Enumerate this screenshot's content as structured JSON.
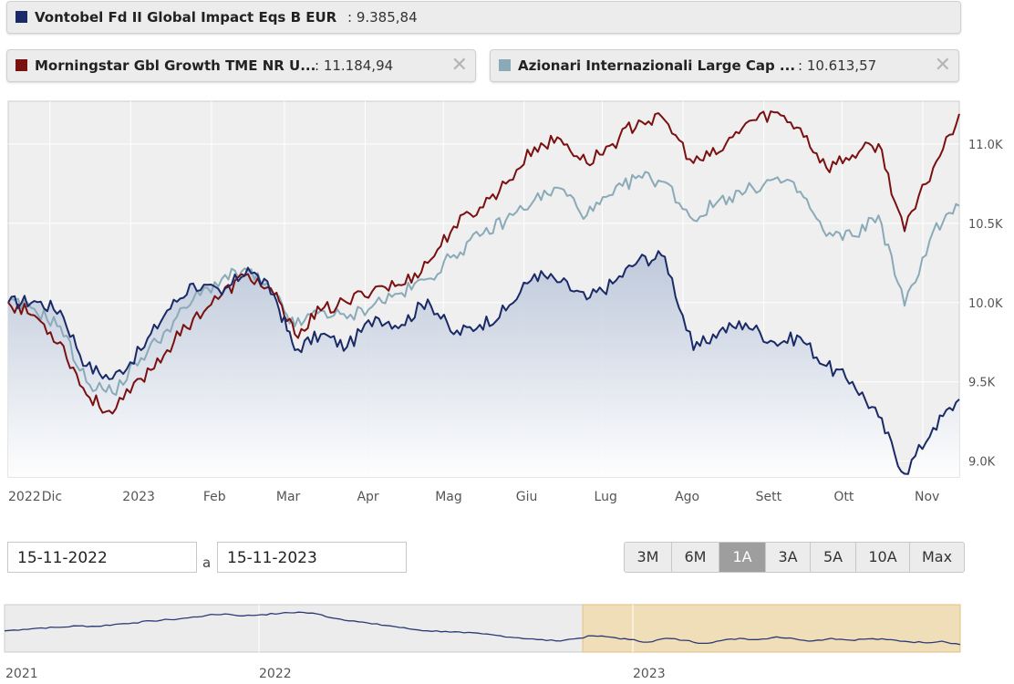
{
  "legend": {
    "items": [
      {
        "name": "Vontobel Fd II Global Impact Eqs B EUR",
        "value": ": 9.385,84",
        "color": "#1a2a66",
        "closable": false
      },
      {
        "name": "Morningstar Gbl Growth TME NR U...",
        "value": ": 11.184,94",
        "color": "#7a1010",
        "closable": true
      },
      {
        "name": "Azionari Internazionali Large Cap ...",
        "value": ": 10.613,57",
        "color": "#8aaab8",
        "closable": true
      }
    ],
    "close_glyph": "✕",
    "close_icon": "close-icon"
  },
  "chart_data": {
    "type": "line",
    "x_axis_labels": [
      "2022",
      "Dic",
      "2023",
      "Feb",
      "Mar",
      "Apr",
      "Mag",
      "Giu",
      "Lug",
      "Ago",
      "Sett",
      "Ott",
      "Nov"
    ],
    "y_tick_labels": [
      "11.0K",
      "10.5K",
      "10.0K",
      "9.5K",
      "9.0K"
    ],
    "ylim": [
      8900,
      11270
    ],
    "y_axis_side": "right",
    "grid": true,
    "x": [
      "2022-11-15",
      "2022-11-25",
      "2022-12-05",
      "2022-12-15",
      "2022-12-25",
      "2023-01-05",
      "2023-01-15",
      "2023-01-25",
      "2023-02-05",
      "2023-02-15",
      "2023-02-25",
      "2023-03-05",
      "2023-03-15",
      "2023-03-25",
      "2023-04-05",
      "2023-04-15",
      "2023-04-25",
      "2023-05-05",
      "2023-05-15",
      "2023-05-25",
      "2023-06-05",
      "2023-06-15",
      "2023-06-25",
      "2023-07-05",
      "2023-07-15",
      "2023-07-25",
      "2023-08-05",
      "2023-08-15",
      "2023-08-25",
      "2023-09-05",
      "2023-09-15",
      "2023-09-25",
      "2023-10-05",
      "2023-10-15",
      "2023-10-25",
      "2023-11-05",
      "2023-11-15"
    ],
    "series": [
      {
        "name": "Vontobel Fd II Global Impact Eqs B EUR",
        "color": "#1a2a66",
        "fill": true,
        "values": [
          10000,
          10010,
          9950,
          9600,
          9520,
          9700,
          9950,
          10120,
          10050,
          10220,
          10050,
          9700,
          9800,
          9720,
          9910,
          9860,
          10020,
          9800,
          9860,
          9950,
          10180,
          10130,
          10020,
          10120,
          10270,
          10290,
          9700,
          9820,
          9870,
          9750,
          9780,
          9600,
          9500,
          9280,
          8920,
          9210,
          9390
        ]
      },
      {
        "name": "Morningstar Gbl Growth TME NR U...",
        "color": "#7a1010",
        "fill": false,
        "values": [
          10000,
          9920,
          9750,
          9420,
          9300,
          9520,
          9700,
          9900,
          10050,
          10180,
          10050,
          9800,
          9950,
          10000,
          10100,
          10110,
          10250,
          10480,
          10600,
          10750,
          10980,
          11030,
          10880,
          11000,
          11150,
          11150,
          10880,
          10950,
          11130,
          11200,
          11100,
          10850,
          10930,
          11000,
          10450,
          10850,
          11190
        ]
      },
      {
        "name": "Azionari Internazionali Large Cap ...",
        "color": "#8aaab8",
        "fill": false,
        "values": [
          10000,
          9960,
          9850,
          9500,
          9430,
          9650,
          9830,
          10020,
          10150,
          10200,
          10050,
          9850,
          9950,
          9900,
          10000,
          10060,
          10150,
          10300,
          10420,
          10520,
          10650,
          10720,
          10550,
          10680,
          10800,
          10760,
          10520,
          10650,
          10700,
          10780,
          10700,
          10420,
          10420,
          10550,
          9980,
          10450,
          10610
        ]
      }
    ]
  },
  "date_range": {
    "from": "15-11-2022",
    "separator": "a",
    "to": "15-11-2023"
  },
  "range_buttons": [
    {
      "label": "3M",
      "active": false
    },
    {
      "label": "6M",
      "active": false
    },
    {
      "label": "1A",
      "active": true
    },
    {
      "label": "3A",
      "active": false
    },
    {
      "label": "5A",
      "active": false
    },
    {
      "label": "10A",
      "active": false
    },
    {
      "label": "Max",
      "active": false
    }
  ],
  "navigator": {
    "x_labels": [
      "2021",
      "2022",
      "2023"
    ],
    "values": [
      10500,
      10560,
      10620,
      10640,
      10700,
      10680,
      10760,
      10820,
      10900,
      10950,
      11020,
      11120,
      11180,
      11100,
      11150,
      11200,
      11250,
      11180,
      11000,
      10900,
      10780,
      10700,
      10580,
      10500,
      10480,
      10420,
      10380,
      10300,
      10220,
      10150,
      10100,
      10180,
      10300,
      10250,
      10150,
      10050,
      10200,
      10120,
      10000,
      10110,
      10200,
      10150,
      10260,
      10180,
      10100,
      10200,
      10130,
      10180,
      10150,
      10080,
      10030,
      10090,
      9950
    ],
    "selection_start_fraction": 0.605,
    "selection_color": "#f0deb8"
  }
}
